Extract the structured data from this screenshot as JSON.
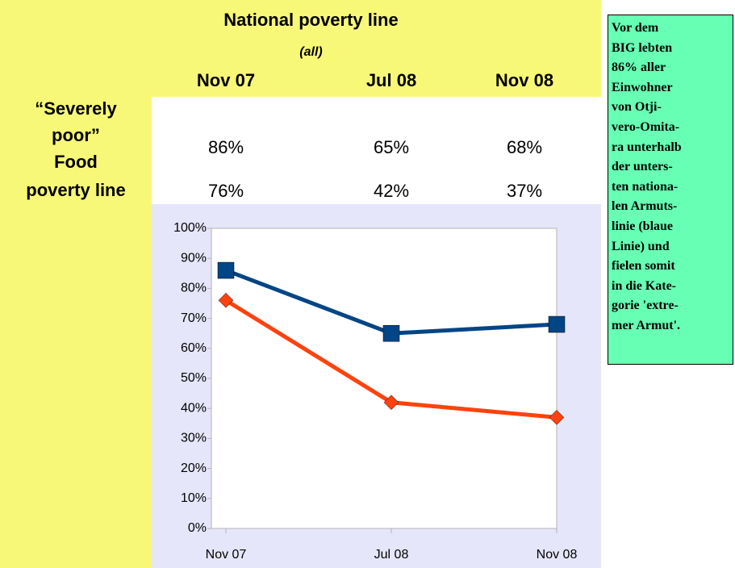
{
  "table": {
    "title": "National poverty line",
    "subtitle": "(all)",
    "columns": [
      "Nov 07",
      "Jul 08",
      "Nov 08"
    ],
    "rows": [
      {
        "label": [
          "“Severely",
          "poor”"
        ],
        "cells": [
          "86%",
          "65%",
          "68%"
        ]
      },
      {
        "label": [
          "Food",
          "poverty line"
        ],
        "cells": [
          "76%",
          "42%",
          "37%"
        ]
      }
    ]
  },
  "note": [
    "Vor dem",
    "BIG lebten",
    "86% aller",
    "Einwohner",
    "von Otji-",
    "vero-Omita-",
    "ra unterhalb",
    "der unters-",
    "ten nationa-",
    "len Armuts-",
    "linie (blaue",
    "Linie) und",
    "fielen somit",
    "in die Kate-",
    "gorie 'extre-",
    "mer Armut'."
  ],
  "chart_data": {
    "type": "line",
    "categories": [
      "Nov 07",
      "Jul 08",
      "Nov 08"
    ],
    "series": [
      {
        "color": "#004586",
        "marker": "square",
        "values": [
          86,
          65,
          68
        ]
      },
      {
        "color": "#ff420e",
        "marker": "diamond",
        "values": [
          76,
          42,
          37
        ]
      }
    ],
    "ylim": [
      0,
      100
    ],
    "yticks": [
      {
        "value": 0,
        "label": "0%"
      },
      {
        "value": 10,
        "label": "10%"
      },
      {
        "value": 20,
        "label": "20%"
      },
      {
        "value": 30,
        "label": "30%"
      },
      {
        "value": 40,
        "label": "40%"
      },
      {
        "value": 50,
        "label": "50%"
      },
      {
        "value": 60,
        "label": "60%"
      },
      {
        "value": 70,
        "label": "70%"
      },
      {
        "value": 80,
        "label": "80%"
      },
      {
        "value": 90,
        "label": "90%"
      },
      {
        "value": 100,
        "label": "100%"
      }
    ],
    "grid": false
  }
}
